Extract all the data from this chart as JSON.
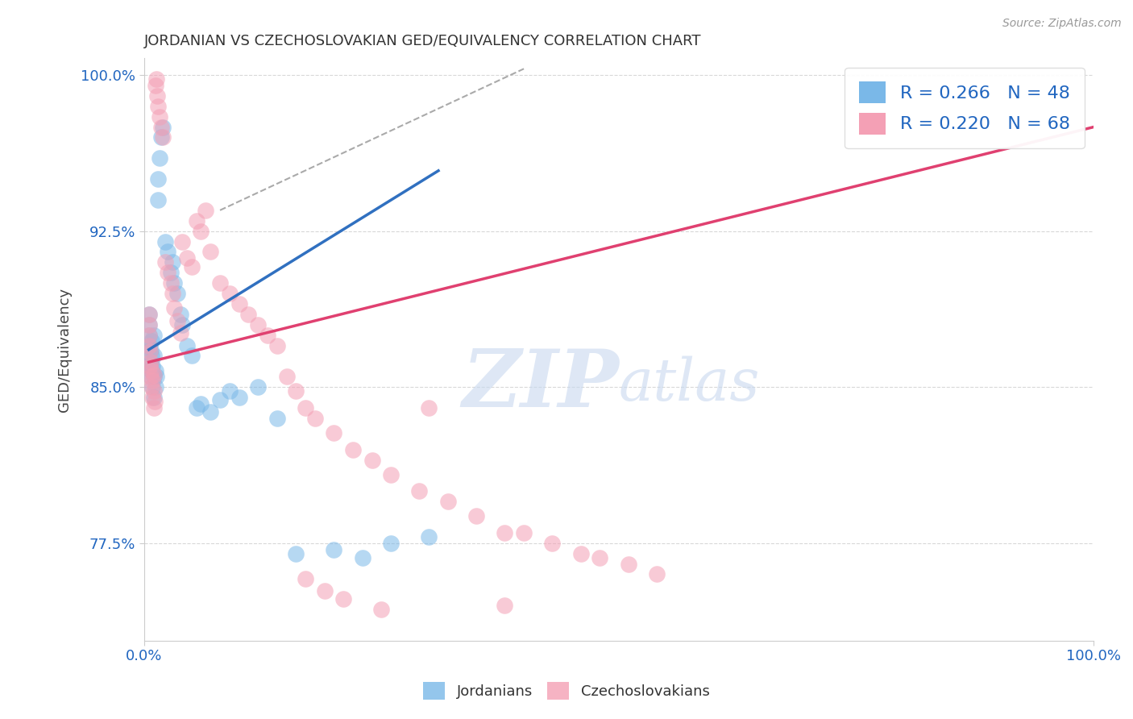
{
  "title": "JORDANIAN VS CZECHOSLOVAKIAN GED/EQUIVALENCY CORRELATION CHART",
  "source_text": "Source: ZipAtlas.com",
  "ylabel": "GED/Equivalency",
  "xlim": [
    0.0,
    1.0
  ],
  "ylim": [
    0.728,
    1.008
  ],
  "yticks": [
    0.775,
    0.85,
    0.925,
    1.0
  ],
  "ytick_labels": [
    "77.5%",
    "85.0%",
    "92.5%",
    "100.0%"
  ],
  "xtick_labels": [
    "0.0%",
    "100.0%"
  ],
  "xticks": [
    0.0,
    1.0
  ],
  "blue_color": "#7ab8e8",
  "pink_color": "#f4a0b5",
  "blue_line_color": "#3070c0",
  "pink_line_color": "#e04070",
  "R_blue": 0.266,
  "N_blue": 48,
  "R_pink": 0.22,
  "N_pink": 68,
  "legend_text_color": "#2166c0",
  "background_color": "#ffffff",
  "grid_color": "#d8d8d8",
  "blue_line_x": [
    0.005,
    0.31
  ],
  "blue_line_y": [
    0.868,
    0.954
  ],
  "pink_line_x": [
    0.005,
    1.0
  ],
  "pink_line_y": [
    0.862,
    0.975
  ],
  "dash_line_x": [
    0.08,
    0.4
  ],
  "dash_line_y": [
    0.935,
    1.003
  ],
  "blue_scatter_x": [
    0.005,
    0.005,
    0.005,
    0.005,
    0.005,
    0.007,
    0.007,
    0.007,
    0.008,
    0.008,
    0.008,
    0.009,
    0.009,
    0.01,
    0.01,
    0.01,
    0.01,
    0.012,
    0.012,
    0.013,
    0.015,
    0.015,
    0.016,
    0.018,
    0.02,
    0.022,
    0.025,
    0.028,
    0.03,
    0.032,
    0.035,
    0.038,
    0.04,
    0.045,
    0.05,
    0.055,
    0.06,
    0.07,
    0.08,
    0.09,
    0.1,
    0.12,
    0.14,
    0.16,
    0.2,
    0.23,
    0.26,
    0.3
  ],
  "blue_scatter_y": [
    0.86,
    0.87,
    0.875,
    0.88,
    0.885,
    0.855,
    0.862,
    0.868,
    0.858,
    0.865,
    0.872,
    0.85,
    0.86,
    0.845,
    0.855,
    0.865,
    0.875,
    0.85,
    0.858,
    0.855,
    0.94,
    0.95,
    0.96,
    0.97,
    0.975,
    0.92,
    0.915,
    0.905,
    0.91,
    0.9,
    0.895,
    0.885,
    0.88,
    0.87,
    0.865,
    0.84,
    0.842,
    0.838,
    0.844,
    0.848,
    0.845,
    0.85,
    0.835,
    0.77,
    0.772,
    0.768,
    0.775,
    0.778
  ],
  "pink_scatter_x": [
    0.005,
    0.005,
    0.005,
    0.005,
    0.006,
    0.006,
    0.007,
    0.007,
    0.008,
    0.008,
    0.009,
    0.009,
    0.01,
    0.01,
    0.01,
    0.011,
    0.012,
    0.013,
    0.014,
    0.015,
    0.016,
    0.018,
    0.02,
    0.022,
    0.025,
    0.028,
    0.03,
    0.032,
    0.035,
    0.038,
    0.04,
    0.045,
    0.05,
    0.055,
    0.06,
    0.065,
    0.07,
    0.08,
    0.09,
    0.1,
    0.11,
    0.12,
    0.13,
    0.14,
    0.15,
    0.16,
    0.17,
    0.18,
    0.2,
    0.22,
    0.24,
    0.26,
    0.29,
    0.32,
    0.35,
    0.38,
    0.4,
    0.43,
    0.46,
    0.48,
    0.51,
    0.54,
    0.3,
    0.17,
    0.19,
    0.21,
    0.38,
    0.25
  ],
  "pink_scatter_y": [
    0.87,
    0.875,
    0.88,
    0.885,
    0.86,
    0.867,
    0.855,
    0.862,
    0.85,
    0.858,
    0.845,
    0.853,
    0.84,
    0.848,
    0.856,
    0.843,
    0.995,
    0.998,
    0.99,
    0.985,
    0.98,
    0.975,
    0.97,
    0.91,
    0.905,
    0.9,
    0.895,
    0.888,
    0.882,
    0.876,
    0.92,
    0.912,
    0.908,
    0.93,
    0.925,
    0.935,
    0.915,
    0.9,
    0.895,
    0.89,
    0.885,
    0.88,
    0.875,
    0.87,
    0.855,
    0.848,
    0.84,
    0.835,
    0.828,
    0.82,
    0.815,
    0.808,
    0.8,
    0.795,
    0.788,
    0.78,
    0.78,
    0.775,
    0.77,
    0.768,
    0.765,
    0.76,
    0.84,
    0.758,
    0.752,
    0.748,
    0.745,
    0.743
  ]
}
